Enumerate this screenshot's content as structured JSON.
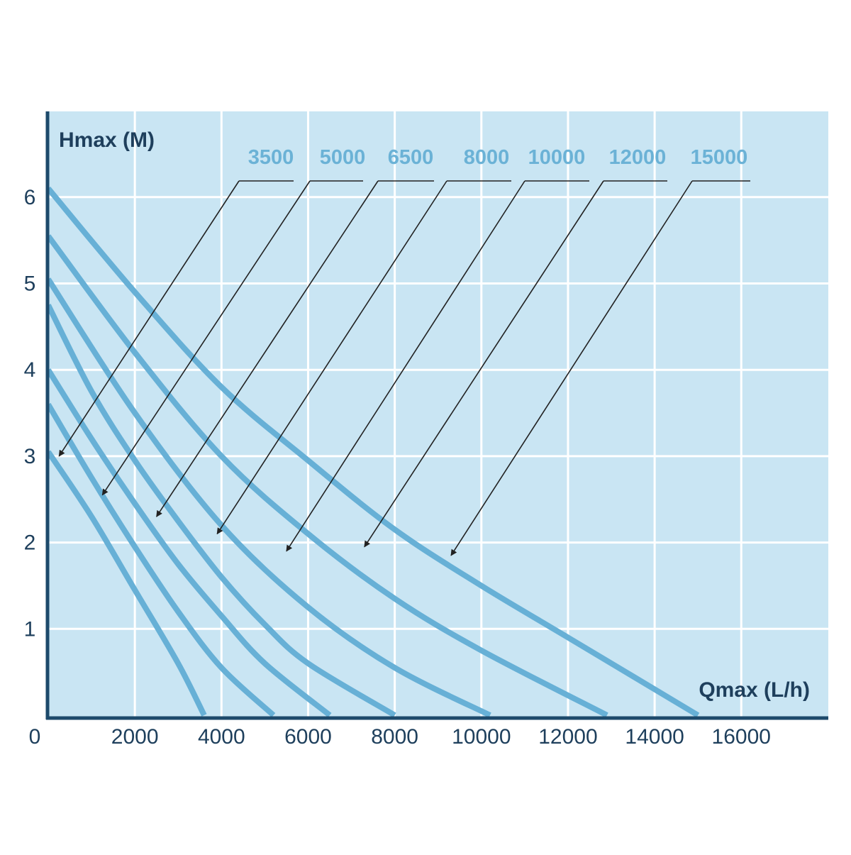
{
  "chart_data": {
    "type": "line",
    "ylabel": "Hmax (M)",
    "xlabel": "Qmax (L/h)",
    "xlim": [
      0,
      18000
    ],
    "ylim": [
      0,
      7
    ],
    "x_ticks": [
      0,
      2000,
      4000,
      6000,
      8000,
      10000,
      12000,
      14000,
      16000
    ],
    "y_ticks": [
      1,
      2,
      3,
      4,
      5,
      6
    ],
    "grid": true,
    "colors": {
      "plot_background": "#c9e5f3",
      "gridline": "#ffffff",
      "axis": "#1d4a6b",
      "curve": "#67b0d6",
      "label": "#6bb2d6",
      "pointer": "#222222"
    },
    "series": [
      {
        "name": "3500",
        "points": [
          [
            0,
            3.05
          ],
          [
            1000,
            2.3
          ],
          [
            2000,
            1.45
          ],
          [
            3000,
            0.6
          ],
          [
            3600,
            0.0
          ]
        ]
      },
      {
        "name": "5000",
        "points": [
          [
            0,
            3.6
          ],
          [
            1000,
            2.75
          ],
          [
            2000,
            1.95
          ],
          [
            3000,
            1.2
          ],
          [
            4000,
            0.55
          ],
          [
            5200,
            0.0
          ]
        ]
      },
      {
        "name": "6500",
        "points": [
          [
            0,
            4.0
          ],
          [
            1000,
            3.2
          ],
          [
            2000,
            2.45
          ],
          [
            3000,
            1.75
          ],
          [
            4000,
            1.15
          ],
          [
            5000,
            0.6
          ],
          [
            6500,
            0.0
          ]
        ]
      },
      {
        "name": "8000",
        "points": [
          [
            0,
            4.75
          ],
          [
            1000,
            3.75
          ],
          [
            2000,
            2.95
          ],
          [
            3000,
            2.25
          ],
          [
            4000,
            1.6
          ],
          [
            5000,
            1.05
          ],
          [
            6000,
            0.6
          ],
          [
            8000,
            0.0
          ]
        ]
      },
      {
        "name": "10000",
        "points": [
          [
            0,
            5.05
          ],
          [
            2000,
            3.5
          ],
          [
            4000,
            2.2
          ],
          [
            6000,
            1.25
          ],
          [
            8000,
            0.55
          ],
          [
            10200,
            0.0
          ]
        ]
      },
      {
        "name": "12000",
        "points": [
          [
            0,
            5.55
          ],
          [
            2000,
            4.2
          ],
          [
            4000,
            3.0
          ],
          [
            6000,
            2.1
          ],
          [
            8000,
            1.35
          ],
          [
            10000,
            0.75
          ],
          [
            12900,
            0.0
          ]
        ]
      },
      {
        "name": "15000",
        "points": [
          [
            0,
            6.1
          ],
          [
            2000,
            4.9
          ],
          [
            4000,
            3.8
          ],
          [
            6000,
            2.95
          ],
          [
            8000,
            2.15
          ],
          [
            10000,
            1.5
          ],
          [
            12000,
            0.9
          ],
          [
            15000,
            0.0
          ]
        ]
      }
    ],
    "annotations": [
      {
        "series": "3500",
        "text": "3500",
        "target": [
          250,
          3.0
        ]
      },
      {
        "series": "5000",
        "text": "5000",
        "target": [
          1250,
          2.55
        ]
      },
      {
        "series": "6500",
        "text": "6500",
        "target": [
          2500,
          2.3
        ]
      },
      {
        "series": "8000",
        "text": "8000",
        "target": [
          3900,
          2.1
        ]
      },
      {
        "series": "10000",
        "text": "10000",
        "target": [
          5500,
          1.9
        ]
      },
      {
        "series": "12000",
        "text": "12000",
        "target": [
          7300,
          1.95
        ]
      },
      {
        "series": "15000",
        "text": "15000",
        "target": [
          9300,
          1.85
        ]
      }
    ]
  }
}
